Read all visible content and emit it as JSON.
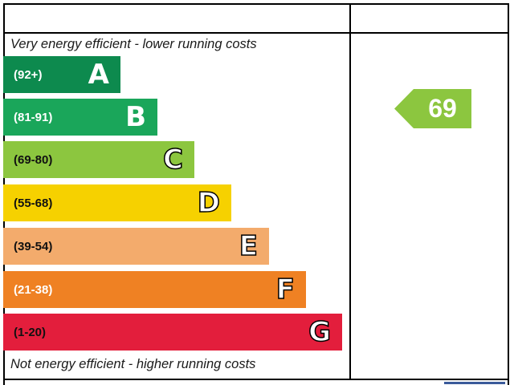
{
  "captions": {
    "top": "Very energy efficient - lower running costs",
    "bottom": "Not energy efficient - higher running costs"
  },
  "bands": [
    {
      "range": "(92+)",
      "letter": "A",
      "color": "#0d8a4e"
    },
    {
      "range": "(81-91)",
      "letter": "B",
      "color": "#1aa65a"
    },
    {
      "range": "(69-80)",
      "letter": "C",
      "color": "#8cc63f"
    },
    {
      "range": "(55-68)",
      "letter": "D",
      "color": "#f6d100"
    },
    {
      "range": "(39-54)",
      "letter": "E",
      "color": "#f3ab6c"
    },
    {
      "range": "(21-38)",
      "letter": "F",
      "color": "#ef8123"
    },
    {
      "range": "(1-20)",
      "letter": "G",
      "color": "#e31e3c"
    }
  ],
  "current_rating": {
    "value": "69",
    "color": "#8cc63f"
  }
}
